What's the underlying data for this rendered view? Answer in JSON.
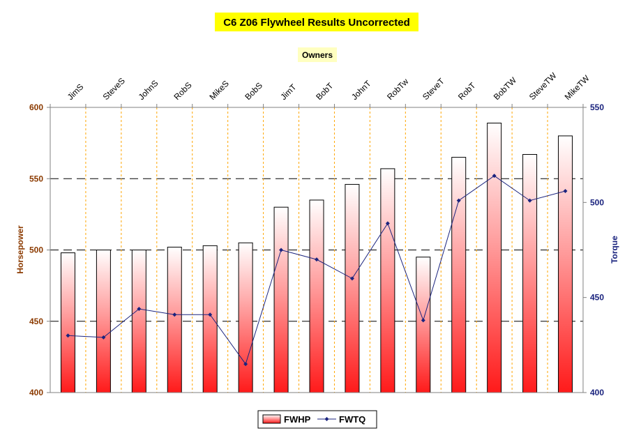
{
  "chart_data": {
    "type": "bar",
    "title": "C6 Z06 Flywheel Results Uncorrected",
    "subtitle": "Owners",
    "ylabel": "Horsepower",
    "y2label": "Torque",
    "ylim": [
      400,
      600
    ],
    "y2lim": [
      400,
      550
    ],
    "yticks": [
      "400",
      "450",
      "500",
      "550",
      "600"
    ],
    "y2ticks": [
      "400",
      "450",
      "500",
      "550"
    ],
    "categories": [
      "JimS",
      "SteveS",
      "JohnS",
      "RobS",
      "MikeS",
      "BobS",
      "JimT",
      "BobT",
      "JohnT",
      "RobTw",
      "SteveT",
      "RobT",
      "BobTW",
      "SteveTW",
      "MikeTW"
    ],
    "series": [
      {
        "name": "FWHP",
        "kind": "bar",
        "axis": "left",
        "values": [
          498,
          500,
          500,
          502,
          503,
          505,
          530,
          535,
          546,
          557,
          495,
          565,
          589,
          567,
          580
        ]
      },
      {
        "name": "FWTQ",
        "kind": "line",
        "axis": "right",
        "values": [
          430,
          429,
          444,
          441,
          441,
          415,
          475,
          470,
          460,
          489,
          438,
          501,
          514,
          501,
          506
        ]
      }
    ],
    "legend_position": "bottom-center",
    "grid": "dashed horizontal major lines, dotted orange vertical category separators",
    "colors": {
      "bar_top": "#ffffff",
      "bar_bottom": "#ff1a1a",
      "bar_edge": "#000000",
      "line": "#1a237e",
      "title_bg": "#ffff00",
      "left_axis_text": "#8b3a00",
      "right_axis_text": "#1a237e",
      "separator": "#ffa500"
    }
  }
}
